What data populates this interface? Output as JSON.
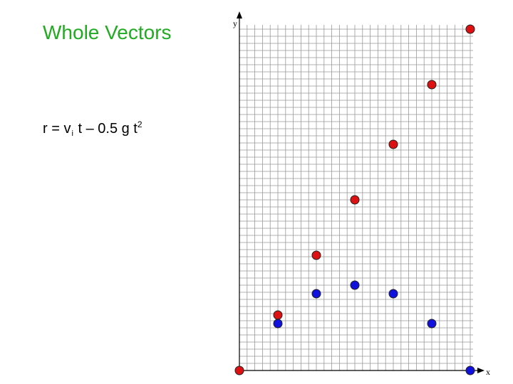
{
  "slide": {
    "title": "Whole Vectors",
    "formula": {
      "r": "r",
      "eq": " = ",
      "v": "v",
      "v_sub": "i",
      "rest": " t – 0.5 g t",
      "sup": "2"
    },
    "title_color": "#22aa22"
  },
  "chart_data": {
    "type": "scatter",
    "xlabel": "x",
    "ylabel": "y",
    "xlim": [
      0,
      6
    ],
    "ylim": [
      0,
      8
    ],
    "grid": true,
    "series": [
      {
        "color": "#dd1111",
        "points": [
          [
            0,
            0
          ],
          [
            1,
            1.3
          ],
          [
            2,
            2.7
          ],
          [
            3,
            4.0
          ],
          [
            4,
            5.3
          ],
          [
            5,
            6.7
          ],
          [
            6,
            8.0
          ]
        ]
      },
      {
        "color": "#1111dd",
        "points": [
          [
            1,
            1.1
          ],
          [
            2,
            1.8
          ],
          [
            3,
            2.0
          ],
          [
            4,
            1.8
          ],
          [
            5,
            1.1
          ],
          [
            6,
            0
          ]
        ]
      }
    ]
  }
}
